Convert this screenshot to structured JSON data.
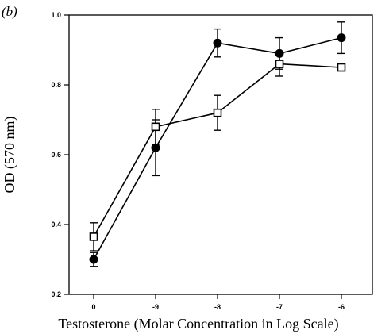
{
  "panel_label": "(b)",
  "chart_data": {
    "type": "line",
    "title": "",
    "xlabel": "Testosterone (Molar Concentration in Log Scale)",
    "ylabel": "OD (570 nm)",
    "x_categories": [
      "0",
      "-9",
      "-8",
      "-7",
      "-6"
    ],
    "ylim": [
      0.2,
      1.0
    ],
    "y_ticks": [
      "0.2",
      "0.4",
      "0.6",
      "0.8",
      "1.0"
    ],
    "grid": false,
    "legend": "none",
    "series": [
      {
        "marker": "filled-circle",
        "values": [
          0.3,
          0.62,
          0.92,
          0.89,
          0.935
        ],
        "errors": [
          0.02,
          0.08,
          0.04,
          0.045,
          0.045
        ]
      },
      {
        "marker": "open-square",
        "values": [
          0.365,
          0.68,
          0.72,
          0.86,
          0.85
        ],
        "errors": [
          0.04,
          0.05,
          0.05,
          0.035,
          0.01
        ]
      }
    ]
  }
}
